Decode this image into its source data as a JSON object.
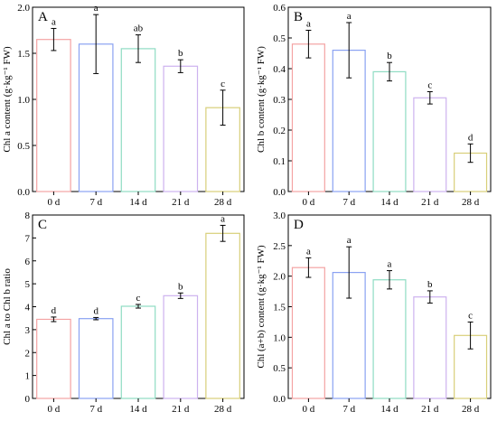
{
  "chart_data": [
    {
      "panel_label": "A",
      "type": "bar",
      "categories": [
        "0 d",
        "7 d",
        "14 d",
        "21 d",
        "28 d"
      ],
      "values": [
        1.65,
        1.6,
        1.55,
        1.36,
        0.91
      ],
      "errors": [
        0.12,
        0.32,
        0.15,
        0.07,
        0.19
      ],
      "letters": [
        "a",
        "a",
        "ab",
        "b",
        "c"
      ],
      "bar_colors": [
        "#f4a3a3",
        "#8aa2f2",
        "#8fdcc3",
        "#cdb2ef",
        "#d8cf79"
      ],
      "xlabel": "",
      "ylabel": "Chl a content (g·kg⁻¹ FW)",
      "ylim": [
        0,
        2.0
      ],
      "yticks": [
        0.0,
        0.5,
        1.0,
        1.5,
        2.0
      ],
      "ytick_labels": [
        "0.0",
        "0.5",
        "1.0",
        "1.5",
        "2.0"
      ],
      "grid": false
    },
    {
      "panel_label": "B",
      "type": "bar",
      "categories": [
        "0 d",
        "7 d",
        "14 d",
        "21 d",
        "28 d"
      ],
      "values": [
        0.48,
        0.46,
        0.39,
        0.305,
        0.125
      ],
      "errors": [
        0.045,
        0.09,
        0.03,
        0.02,
        0.03
      ],
      "letters": [
        "a",
        "a",
        "b",
        "c",
        "d"
      ],
      "bar_colors": [
        "#f4a3a3",
        "#8aa2f2",
        "#8fdcc3",
        "#cdb2ef",
        "#d8cf79"
      ],
      "xlabel": "",
      "ylabel": "Chl b content (g·kg⁻¹ FW)",
      "ylim": [
        0,
        0.6
      ],
      "yticks": [
        0.0,
        0.1,
        0.2,
        0.3,
        0.4,
        0.5,
        0.6
      ],
      "ytick_labels": [
        "0.0",
        "0.1",
        "0.2",
        "0.3",
        "0.4",
        "0.5",
        "0.6"
      ],
      "grid": false
    },
    {
      "panel_label": "C",
      "type": "bar",
      "categories": [
        "0 d",
        "7 d",
        "14 d",
        "21 d",
        "28 d"
      ],
      "values": [
        3.45,
        3.48,
        4.02,
        4.48,
        7.2
      ],
      "errors": [
        0.1,
        0.05,
        0.08,
        0.12,
        0.35
      ],
      "letters": [
        "d",
        "d",
        "c",
        "b",
        "a"
      ],
      "bar_colors": [
        "#f4a3a3",
        "#8aa2f2",
        "#8fdcc3",
        "#cdb2ef",
        "#d8cf79"
      ],
      "xlabel": "",
      "ylabel": "Chl a to Chl b ratio",
      "ylim": [
        0,
        8
      ],
      "yticks": [
        0,
        1,
        2,
        3,
        4,
        5,
        6,
        7,
        8
      ],
      "ytick_labels": [
        "0",
        "1",
        "2",
        "3",
        "4",
        "5",
        "6",
        "7",
        "8"
      ],
      "grid": false
    },
    {
      "panel_label": "D",
      "type": "bar",
      "categories": [
        "0 d",
        "7 d",
        "14 d",
        "21 d",
        "28 d"
      ],
      "values": [
        2.14,
        2.06,
        1.94,
        1.66,
        1.03
      ],
      "errors": [
        0.16,
        0.42,
        0.15,
        0.1,
        0.22
      ],
      "letters": [
        "a",
        "a",
        "a",
        "b",
        "c"
      ],
      "bar_colors": [
        "#f4a3a3",
        "#8aa2f2",
        "#8fdcc3",
        "#cdb2ef",
        "#d8cf79"
      ],
      "xlabel": "",
      "ylabel": "Chl (a+b) content (g·kg⁻¹ FW)",
      "ylim": [
        0,
        3.0
      ],
      "yticks": [
        0.0,
        0.5,
        1.0,
        1.5,
        2.0,
        2.5,
        3.0
      ],
      "ytick_labels": [
        "0.0",
        "0.5",
        "1.0",
        "1.5",
        "2.0",
        "2.5",
        "3.0"
      ],
      "grid": false
    }
  ]
}
